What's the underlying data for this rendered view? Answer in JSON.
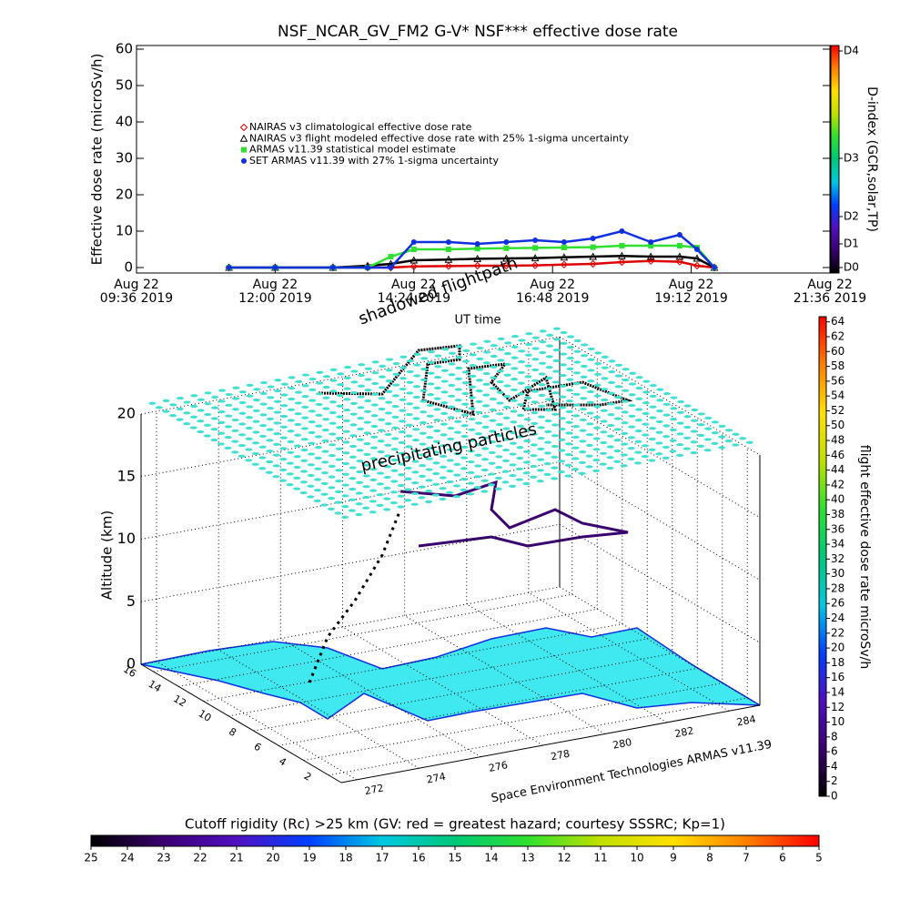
{
  "chart_data": [
    {
      "type": "line",
      "title": "NSF_NCAR_GV_FM2 G-V* NSF*** effective dose rate",
      "x_label": "UT time",
      "y_label": "Effective dose rate (microSv/h)",
      "xlim": [
        9.6,
        21.6
      ],
      "xticks": [
        {
          "value": 9.6,
          "label": "Aug 22\n09:36 2019"
        },
        {
          "value": 12,
          "label": "Aug 22\n12:00 2019"
        },
        {
          "value": 14.4,
          "label": "Aug 22\n14:24 2019"
        },
        {
          "value": 16.8,
          "label": "Aug 22\n16:48 2019"
        },
        {
          "value": 19.2,
          "label": "Aug 22\n19:12 2019"
        },
        {
          "value": 21.6,
          "label": "Aug 22\n21:36 2019"
        }
      ],
      "ylim": [
        -1.5,
        61
      ],
      "yticks": [
        0,
        10,
        20,
        30,
        40,
        50,
        60
      ],
      "legend": "upper left",
      "x": [
        11.2,
        12,
        13,
        13.6,
        14,
        14.4,
        15,
        15.5,
        16,
        16.5,
        17,
        17.5,
        18,
        18.5,
        19,
        19.3,
        19.6
      ],
      "series": [
        {
          "name": "NAIRAS v3 climatological effective dose rate",
          "color": "#e00000",
          "marker": "diamond",
          "values": [
            0,
            0,
            0,
            0,
            0,
            0.3,
            0.4,
            0.5,
            0.5,
            0.6,
            0.8,
            1,
            1.5,
            1.8,
            1.6,
            0.5,
            0
          ]
        },
        {
          "name": "NAIRAS v3 flight modeled effective dose rate with 25% 1-sigma uncertainty",
          "color": "#000000",
          "marker": "triangle",
          "values": [
            0,
            0,
            0,
            0.5,
            1,
            2,
            2.2,
            2.4,
            2.5,
            2.6,
            2.8,
            3,
            3.2,
            3,
            3,
            2.5,
            0
          ]
        },
        {
          "name": "ARMAS v11.39 statistical model estimate",
          "color": "#30e030",
          "marker": "square",
          "values": [
            0,
            0,
            0,
            0,
            3,
            5,
            5,
            5.2,
            5.3,
            5.4,
            5.5,
            5.6,
            6,
            6,
            6,
            5.5,
            0
          ]
        },
        {
          "name": "SET ARMAS v11.39 with 27% 1-sigma uncertainty",
          "color": "#1030e0",
          "marker": "circle",
          "values": [
            0,
            0,
            0,
            0,
            0,
            7,
            7,
            6.5,
            7,
            7.5,
            7,
            8,
            10,
            7,
            9,
            5,
            0
          ]
        }
      ],
      "colorbar": {
        "label": "D-index (GCR,solar,TP)",
        "lim": [
          -1.5,
          61
        ],
        "ticks": [
          {
            "value": 0,
            "label": "D0"
          },
          {
            "value": 6.5,
            "label": "D1"
          },
          {
            "value": 14,
            "label": "D2"
          },
          {
            "value": 30,
            "label": "D3"
          },
          {
            "value": 59.5,
            "label": "D4"
          }
        ]
      }
    },
    {
      "type": "scatter3d",
      "annotations": [
        "shadowed flightpath",
        "precipitating particles"
      ],
      "z_label": "Altitude (km)",
      "zlim": [
        0,
        20
      ],
      "zticks": [
        0,
        5,
        10,
        15,
        20
      ],
      "xlim": [
        271.5,
        285
      ],
      "xticks": [
        272,
        274,
        276,
        278,
        280,
        282,
        284
      ],
      "ylim": [
        1,
        17
      ],
      "yticks": [
        2,
        4,
        6,
        8,
        10,
        12,
        14,
        16
      ],
      "credit": "Space Environment Technologies ARMAS v11.39",
      "colorbar": {
        "label": "flight effective dose rate microSv/h",
        "lim": [
          0,
          64.7
        ],
        "ticks": [
          0,
          2,
          4,
          6,
          8,
          10,
          12,
          14,
          16,
          18,
          20,
          22,
          24,
          26,
          28,
          30,
          32,
          34,
          36,
          38,
          40,
          42,
          44,
          46,
          48,
          50,
          52,
          54,
          56,
          58,
          60,
          62,
          64
        ]
      }
    },
    {
      "type": "colorbar",
      "title": "Cutoff rigidity (Rc) >25 km (GV: red = greatest hazard; courtesy SSSRC; Kp=1)",
      "lim": [
        25,
        5
      ],
      "ticks": [
        25,
        24,
        23,
        22,
        21,
        20,
        19,
        18,
        17,
        16,
        15,
        14,
        13,
        12,
        11,
        10,
        9,
        8,
        7,
        6,
        5
      ]
    }
  ]
}
